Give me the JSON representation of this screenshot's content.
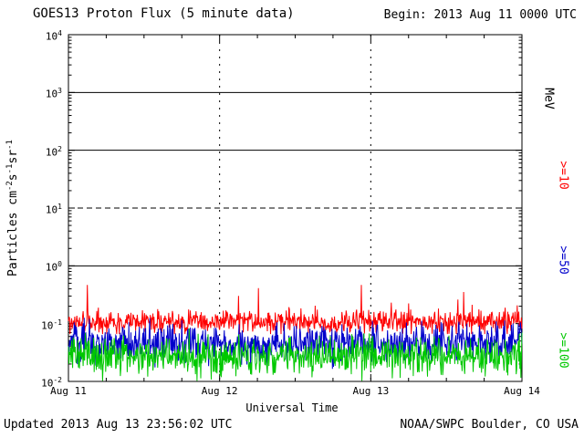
{
  "header": {
    "title": "GOES13 Proton Flux (5 minute data)",
    "begin_label": "Begin: 2013 Aug 11 0000 UTC"
  },
  "footer": {
    "updated_label": "Updated 2013 Aug 13 23:56:02 UTC",
    "source_label": "NOAA/SWPC Boulder, CO USA"
  },
  "chart_data": {
    "type": "line",
    "title": "GOES13 Proton Flux (5 minute data)",
    "begin": "2013 Aug 11 0000 UTC",
    "updated": "2013 Aug 13 23:56:02 UTC",
    "xlabel": "Universal Time",
    "ylabel": "Particles cm^-2 s^-1 sr^-1",
    "ylabel_segments": [
      {
        "text": "Particles cm"
      },
      {
        "sup": "-2"
      },
      {
        "text": "s"
      },
      {
        "sup": "-1"
      },
      {
        "text": "sr"
      },
      {
        "sup": "-1"
      }
    ],
    "right_axis_label": "MeV",
    "y_scale": "log",
    "ylim": [
      0.01,
      10000
    ],
    "y_tick_exponents": [
      4,
      3,
      2,
      1,
      0,
      -1,
      -2
    ],
    "x_tick_labels": [
      "Aug 11",
      "Aug 12",
      "Aug 13",
      "Aug 14"
    ],
    "x_range_days": 3,
    "points_per_day": 288,
    "minor_tick_hours": 6,
    "grid": {
      "solid_h_exponents": [
        3,
        2,
        0
      ],
      "dashed_h_exponents": [
        1
      ],
      "dashed_v_days": [
        1,
        2
      ]
    },
    "series": [
      {
        "name": "protons >=10 MeV",
        "label": ">=10",
        "color": "#ff0000",
        "approx_flux_level": 0.11,
        "mean_log10": -0.97,
        "sigma_log10": 0.1,
        "spike_prob": 0.02,
        "spike_max_log10": 0.62,
        "min_log10": -1.18,
        "max_log10": -0.33,
        "seed": 101
      },
      {
        "name": "protons >=50 MeV",
        "label": ">=50",
        "color": "#0000cc",
        "approx_flux_level": 0.045,
        "mean_log10": -1.33,
        "sigma_log10": 0.16,
        "spike_prob": 0.012,
        "spike_max_log10": 0.35,
        "min_log10": -1.8,
        "max_log10": -0.9,
        "seed": 202
      },
      {
        "name": "protons >=100 MeV",
        "label": ">=100",
        "color": "#00c800",
        "approx_flux_level": 0.03,
        "mean_log10": -1.56,
        "sigma_log10": 0.16,
        "spike_prob": 0.008,
        "spike_max_log10": 0.3,
        "min_log10": -1.99,
        "max_log10": -1.05,
        "seed": 303
      }
    ]
  }
}
